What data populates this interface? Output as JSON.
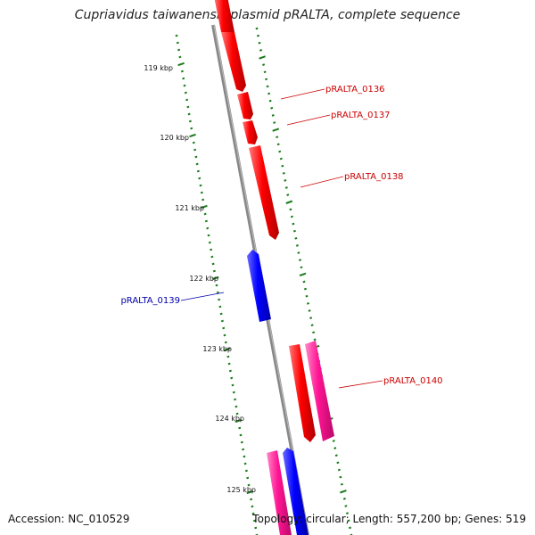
{
  "title": "Cupriavidus taiwanensis plasmid pRALTA, complete sequence",
  "footer": {
    "accession": "Accession: NC_010529",
    "summary": "Topology: circular; Length: 557,200 bp; Genes: 519"
  },
  "colors": {
    "backbone": "#888888",
    "forward_gene": "#ff0000",
    "reverse_gene": "#0000ff",
    "pseudo_gene": "#ff1493",
    "tick": "#1a7a1a",
    "forward_label": "#cc0000",
    "reverse_label": "#0000aa"
  },
  "ticks": [
    {
      "label": "119 kbp"
    },
    {
      "label": "120 kbp"
    },
    {
      "label": "121 kbp"
    },
    {
      "label": "122 kbp"
    },
    {
      "label": "123 kbp"
    },
    {
      "label": "124 kbp"
    },
    {
      "label": "125 kbp"
    }
  ],
  "genes": [
    {
      "label": "pRALTA_0136",
      "strand": "forward"
    },
    {
      "label": "pRALTA_0137",
      "strand": "forward"
    },
    {
      "label": "pRALTA_0138",
      "strand": "forward"
    },
    {
      "label": "pRALTA_0139",
      "strand": "reverse"
    },
    {
      "label": "pRALTA_0140",
      "strand": "forward"
    }
  ]
}
